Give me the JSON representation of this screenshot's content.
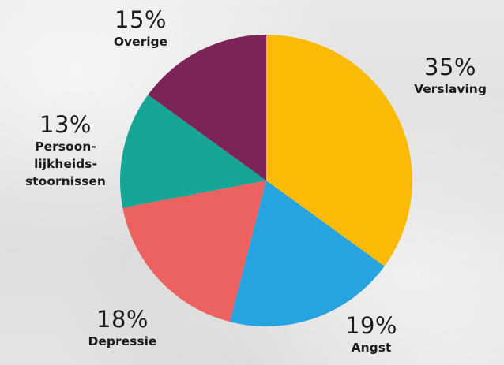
{
  "chart_data": {
    "type": "pie",
    "title": "",
    "slices": [
      {
        "label": "Verslaving",
        "value": 35,
        "display": "35%",
        "color": "#FBBA06"
      },
      {
        "label": "Angst",
        "value": 19,
        "display": "19%",
        "color": "#27A3DF"
      },
      {
        "label": "Depressie",
        "value": 18,
        "display": "18%",
        "color": "#EB6260"
      },
      {
        "label": "Persoon-\nlijkheids-\nstoornissen",
        "value": 13,
        "display": "13%",
        "color": "#17A596"
      },
      {
        "label": "Overige",
        "value": 15,
        "display": "15%",
        "color": "#7C2358"
      }
    ]
  }
}
